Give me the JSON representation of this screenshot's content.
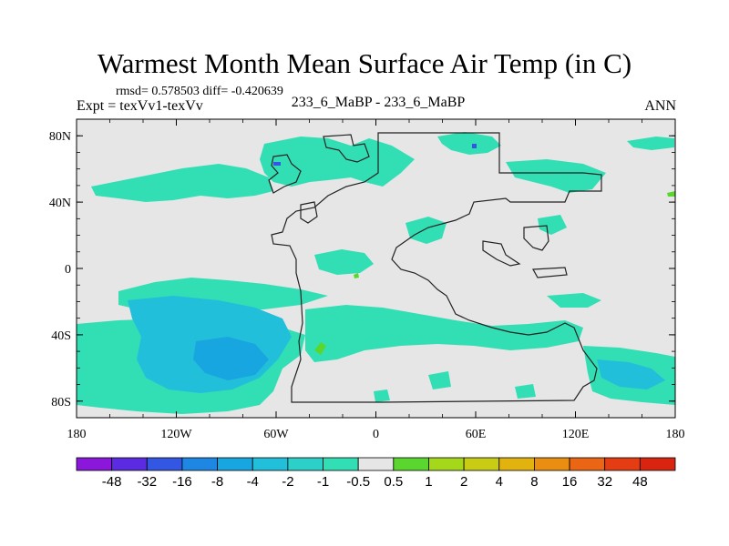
{
  "title": "Warmest Month Mean Surface Air Temp (in C)",
  "stats": "rmsd= 0.578503 diff= -0.420639",
  "experiment": "Expt = texVv1-texVv",
  "comparison": "233_6_MaBP - 233_6_MaBP",
  "period": "ANN",
  "axes": {
    "y_ticks": [
      "80N",
      "40N",
      "0",
      "40S",
      "80S"
    ],
    "x_ticks": [
      "180",
      "120W",
      "60W",
      "0",
      "60E",
      "120E",
      "180"
    ]
  },
  "colorbar": {
    "labels": [
      "-48",
      "-32",
      "-16",
      "-8",
      "-4",
      "-2",
      "-1",
      "-0.5",
      "0.5",
      "1",
      "2",
      "4",
      "8",
      "16",
      "32",
      "48"
    ],
    "colors": [
      "#8a17d9",
      "#5a2be0",
      "#3457e3",
      "#1e86e3",
      "#18a6e0",
      "#22bfdb",
      "#2dcfc9",
      "#32deb4",
      "#e6e6e6",
      "#5ad62f",
      "#a5d81a",
      "#c9cc14",
      "#e2b30f",
      "#ea8e12",
      "#ea6614",
      "#e43c13",
      "#d92510"
    ]
  },
  "map_colors": {
    "background": "#e6e6e6",
    "anomaly_light": "#32deb4",
    "anomaly_medium": "#22bfdb",
    "anomaly_strong": "#18a6e0",
    "anomaly_dark": "#3457e3",
    "positive": "#5ad62f",
    "coast": "#222222"
  }
}
